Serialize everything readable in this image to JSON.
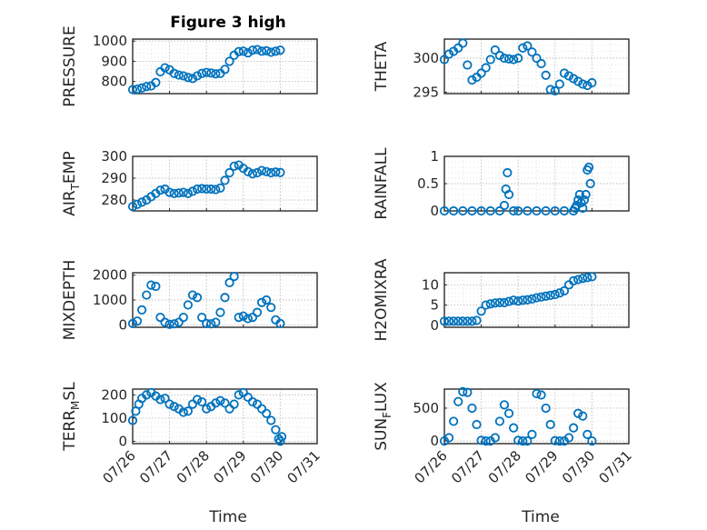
{
  "colors": {
    "marker": "#0072BD",
    "axis": "#262626"
  },
  "chart_data": [
    {
      "type": "scatter",
      "marker": "circle",
      "title": "Figure 3 high",
      "ylabel": "PRESSURE",
      "ylim": [
        740,
        1010
      ],
      "yticks": [
        800,
        900,
        1000
      ],
      "xlim": [
        "07/26",
        "07/30"
      ],
      "series": [
        {
          "x": [
            "07/26 00:00",
            "07/26 03:00",
            "07/26 06:00",
            "07/26 09:00",
            "07/26 12:00",
            "07/26 15:00",
            "07/26 18:00",
            "07/26 21:00",
            "07/27 00:00",
            "07/27 03:00",
            "07/27 06:00",
            "07/27 09:00",
            "07/27 12:00",
            "07/27 15:00",
            "07/27 18:00",
            "07/27 21:00",
            "07/28 00:00",
            "07/28 03:00",
            "07/28 06:00",
            "07/28 09:00",
            "07/28 12:00",
            "07/28 15:00",
            "07/28 18:00",
            "07/28 21:00",
            "07/29 00:00",
            "07/29 03:00",
            "07/29 06:00",
            "07/29 09:00",
            "07/29 12:00",
            "07/29 15:00",
            "07/29 18:00",
            "07/29 21:00",
            "07/30 00:00"
          ],
          "y": [
            760,
            762,
            768,
            775,
            778,
            795,
            848,
            868,
            858,
            840,
            832,
            828,
            820,
            815,
            828,
            840,
            845,
            842,
            838,
            840,
            860,
            900,
            930,
            948,
            950,
            942,
            955,
            958,
            950,
            952,
            945,
            950,
            955
          ]
        }
      ]
    },
    {
      "type": "scatter",
      "marker": "circle",
      "ylabel": "THETA",
      "ylim": [
        294.8,
        302.8
      ],
      "yticks": [
        295,
        300
      ],
      "xlim": [
        "07/26",
        "07/30"
      ],
      "series": [
        {
          "x": [
            "07/26 00:00",
            "07/26 03:00",
            "07/26 06:00",
            "07/26 09:00",
            "07/26 12:00",
            "07/26 15:00",
            "07/26 18:00",
            "07/26 21:00",
            "07/27 00:00",
            "07/27 03:00",
            "07/27 06:00",
            "07/27 09:00",
            "07/27 12:00",
            "07/27 15:00",
            "07/27 18:00",
            "07/27 21:00",
            "07/28 00:00",
            "07/28 03:00",
            "07/28 06:00",
            "07/28 09:00",
            "07/28 12:00",
            "07/28 15:00",
            "07/28 18:00",
            "07/28 21:00",
            "07/29 00:00",
            "07/29 03:00",
            "07/29 06:00",
            "07/29 09:00",
            "07/29 12:00",
            "07/29 15:00",
            "07/29 18:00",
            "07/29 21:00",
            "07/30 00:00"
          ],
          "y": [
            299.8,
            300.6,
            301.0,
            301.5,
            302.2,
            299.0,
            296.8,
            297.2,
            297.8,
            298.6,
            299.8,
            301.2,
            300.4,
            300.0,
            299.9,
            299.8,
            300.0,
            301.5,
            301.8,
            300.9,
            300.0,
            299.2,
            297.5,
            295.4,
            295.2,
            296.2,
            297.8,
            297.4,
            297.0,
            296.6,
            296.2,
            296.0,
            296.4
          ]
        }
      ]
    },
    {
      "type": "scatter",
      "marker": "circle",
      "ylabel": "AIR_TEMP",
      "ylim": [
        275,
        300
      ],
      "yticks": [
        280,
        290,
        300
      ],
      "xlim": [
        "07/26",
        "07/30"
      ],
      "series": [
        {
          "x": [
            "07/26 00:00",
            "07/26 03:00",
            "07/26 06:00",
            "07/26 09:00",
            "07/26 12:00",
            "07/26 15:00",
            "07/26 18:00",
            "07/26 21:00",
            "07/27 00:00",
            "07/27 03:00",
            "07/27 06:00",
            "07/27 09:00",
            "07/27 12:00",
            "07/27 15:00",
            "07/27 18:00",
            "07/27 21:00",
            "07/28 00:00",
            "07/28 03:00",
            "07/28 06:00",
            "07/28 09:00",
            "07/28 12:00",
            "07/28 15:00",
            "07/28 18:00",
            "07/28 21:00",
            "07/29 00:00",
            "07/29 03:00",
            "07/29 06:00",
            "07/29 09:00",
            "07/29 12:00",
            "07/29 15:00",
            "07/29 18:00",
            "07/29 21:00",
            "07/30 00:00"
          ],
          "y": [
            277.0,
            278.0,
            279.0,
            280.0,
            281.5,
            283.0,
            284.5,
            285.0,
            283.5,
            283.0,
            283.2,
            283.5,
            283.0,
            284.0,
            285.0,
            285.2,
            285.0,
            285.0,
            284.8,
            285.5,
            289.0,
            292.5,
            295.5,
            296.0,
            294.5,
            293.0,
            292.0,
            292.5,
            293.5,
            293.0,
            292.5,
            292.8,
            292.6
          ]
        }
      ]
    },
    {
      "type": "scatter",
      "marker": "circle",
      "ylabel": "RAINFALL",
      "ylim": [
        0,
        1
      ],
      "yticks": [
        0,
        0.5,
        1
      ],
      "xlim": [
        "07/26",
        "07/30"
      ],
      "series": [
        {
          "x": [
            "07/26 00:00",
            "07/26 06:00",
            "07/26 12:00",
            "07/26 18:00",
            "07/27 00:00",
            "07/27 06:00",
            "07/27 12:00",
            "07/27 15:00",
            "07/27 16:00",
            "07/27 17:00",
            "07/27 18:00",
            "07/27 21:00",
            "07/28 00:00",
            "07/28 06:00",
            "07/28 12:00",
            "07/28 18:00",
            "07/29 00:00",
            "07/29 06:00",
            "07/29 12:00",
            "07/29 13:00",
            "07/29 14:00",
            "07/29 15:00",
            "07/29 16:00",
            "07/29 17:00",
            "07/29 18:00",
            "07/29 19:00",
            "07/29 20:00",
            "07/29 21:00",
            "07/29 22:00",
            "07/29 23:00"
          ],
          "y": [
            0,
            0,
            0,
            0,
            0,
            0,
            0,
            0.1,
            0.4,
            0.7,
            0.3,
            0,
            0,
            0,
            0,
            0,
            0,
            0,
            0,
            0.05,
            0.1,
            0.2,
            0.3,
            0.15,
            0.05,
            0.2,
            0.3,
            0.75,
            0.8,
            0.5
          ]
        }
      ]
    },
    {
      "type": "scatter",
      "marker": "circle",
      "ylabel": "MIXDEPTH",
      "ylim": [
        -100,
        2100
      ],
      "yticks": [
        0,
        1000,
        2000
      ],
      "xlim": [
        "07/26",
        "07/30"
      ],
      "series": [
        {
          "x": [
            "07/26 00:00",
            "07/26 03:00",
            "07/26 06:00",
            "07/26 09:00",
            "07/26 12:00",
            "07/26 15:00",
            "07/26 18:00",
            "07/26 21:00",
            "07/27 00:00",
            "07/27 03:00",
            "07/27 06:00",
            "07/27 09:00",
            "07/27 12:00",
            "07/27 15:00",
            "07/27 18:00",
            "07/27 21:00",
            "07/28 00:00",
            "07/28 03:00",
            "07/28 06:00",
            "07/28 09:00",
            "07/28 12:00",
            "07/28 15:00",
            "07/28 18:00",
            "07/28 21:00",
            "07/29 00:00",
            "07/29 03:00",
            "07/29 06:00",
            "07/29 09:00",
            "07/29 12:00",
            "07/29 15:00",
            "07/29 18:00",
            "07/29 21:00",
            "07/30 00:00"
          ],
          "y": [
            50,
            150,
            600,
            1200,
            1600,
            1550,
            300,
            100,
            20,
            40,
            100,
            300,
            800,
            1200,
            1100,
            300,
            50,
            40,
            100,
            500,
            1100,
            1700,
            1950,
            300,
            350,
            250,
            300,
            500,
            900,
            1000,
            700,
            200,
            50
          ]
        }
      ]
    },
    {
      "type": "scatter",
      "marker": "circle",
      "ylabel": "H2OMIXRA",
      "ylim": [
        -0.5,
        13
      ],
      "yticks": [
        0,
        5,
        10
      ],
      "xlim": [
        "07/26",
        "07/30"
      ],
      "series": [
        {
          "x": [
            "07/26 00:00",
            "07/26 03:00",
            "07/26 06:00",
            "07/26 09:00",
            "07/26 12:00",
            "07/26 15:00",
            "07/26 18:00",
            "07/26 21:00",
            "07/27 00:00",
            "07/27 03:00",
            "07/27 06:00",
            "07/27 09:00",
            "07/27 12:00",
            "07/27 15:00",
            "07/27 18:00",
            "07/27 21:00",
            "07/28 00:00",
            "07/28 03:00",
            "07/28 06:00",
            "07/28 09:00",
            "07/28 12:00",
            "07/28 15:00",
            "07/28 18:00",
            "07/28 21:00",
            "07/29 00:00",
            "07/29 03:00",
            "07/29 06:00",
            "07/29 09:00",
            "07/29 12:00",
            "07/29 15:00",
            "07/29 18:00",
            "07/29 21:00",
            "07/30 00:00"
          ],
          "y": [
            1.0,
            1.0,
            1.0,
            1.0,
            1.0,
            1.0,
            1.0,
            1.2,
            3.5,
            5.0,
            5.3,
            5.5,
            5.6,
            5.6,
            5.9,
            6.2,
            6.0,
            6.2,
            6.3,
            6.5,
            6.8,
            7.0,
            7.2,
            7.4,
            7.6,
            8.0,
            8.5,
            10.0,
            11.0,
            11.3,
            11.6,
            11.8,
            12.0
          ]
        }
      ]
    },
    {
      "type": "scatter",
      "marker": "circle",
      "ylabel": "TERR_MSL",
      "ylim": [
        -10,
        225
      ],
      "yticks": [
        0,
        100,
        200
      ],
      "xlim": [
        "07/26",
        "07/30"
      ],
      "series": [
        {
          "x": [
            "07/26 00:00",
            "07/26 02:00",
            "07/26 04:00",
            "07/26 06:00",
            "07/26 09:00",
            "07/26 12:00",
            "07/26 15:00",
            "07/26 18:00",
            "07/26 21:00",
            "07/27 00:00",
            "07/27 03:00",
            "07/27 06:00",
            "07/27 09:00",
            "07/27 12:00",
            "07/27 15:00",
            "07/27 18:00",
            "07/27 21:00",
            "07/28 00:00",
            "07/28 03:00",
            "07/28 06:00",
            "07/28 09:00",
            "07/28 12:00",
            "07/28 15:00",
            "07/28 18:00",
            "07/28 21:00",
            "07/29 00:00",
            "07/29 03:00",
            "07/29 06:00",
            "07/29 09:00",
            "07/29 12:00",
            "07/29 15:00",
            "07/29 18:00",
            "07/29 21:00",
            "07/29 23:00",
            "07/30 00:00",
            "07/30 01:00"
          ],
          "y": [
            90,
            130,
            160,
            185,
            200,
            210,
            195,
            180,
            185,
            160,
            150,
            140,
            125,
            130,
            160,
            180,
            170,
            140,
            150,
            165,
            175,
            165,
            140,
            160,
            200,
            210,
            190,
            170,
            160,
            140,
            120,
            90,
            50,
            10,
            0,
            20
          ]
        }
      ]
    },
    {
      "type": "scatter",
      "marker": "circle",
      "ylabel": "SUN_FLUX",
      "ylim": [
        -40,
        790
      ],
      "yticks": [
        0,
        500
      ],
      "xlim": [
        "07/26",
        "07/30"
      ],
      "series": [
        {
          "x": [
            "07/26 00:00",
            "07/26 03:00",
            "07/26 06:00",
            "07/26 09:00",
            "07/26 12:00",
            "07/26 15:00",
            "07/26 18:00",
            "07/26 21:00",
            "07/27 00:00",
            "07/27 03:00",
            "07/27 06:00",
            "07/27 09:00",
            "07/27 12:00",
            "07/27 15:00",
            "07/27 18:00",
            "07/27 21:00",
            "07/28 00:00",
            "07/28 03:00",
            "07/28 06:00",
            "07/28 09:00",
            "07/28 12:00",
            "07/28 15:00",
            "07/28 18:00",
            "07/28 21:00",
            "07/29 00:00",
            "07/29 03:00",
            "07/29 06:00",
            "07/29 09:00",
            "07/29 12:00",
            "07/29 15:00",
            "07/29 18:00",
            "07/29 21:00",
            "07/30 00:00"
          ],
          "y": [
            0,
            50,
            300,
            600,
            750,
            740,
            500,
            250,
            10,
            0,
            0,
            50,
            300,
            550,
            420,
            200,
            10,
            0,
            0,
            100,
            720,
            700,
            500,
            250,
            5,
            0,
            0,
            50,
            200,
            420,
            380,
            100,
            0
          ]
        }
      ]
    }
  ],
  "x_tick_labels": [
    "07/26",
    "07/27",
    "07/28",
    "07/29",
    "07/30",
    "07/31"
  ],
  "xlabel": "Time"
}
